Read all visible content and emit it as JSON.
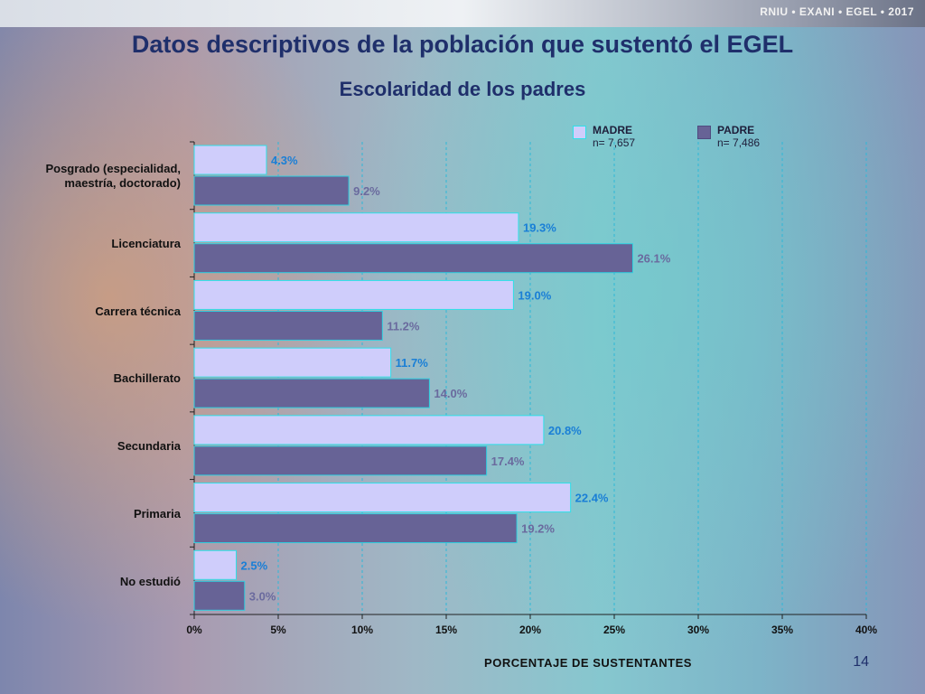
{
  "brand": "RNIU • EXANI • EGEL • 2017",
  "title": "Datos descriptivos de la población que sustentó el EGEL",
  "page_number": "14",
  "colors": {
    "madre_fill": "#cfcdfb",
    "madre_border": "#2fe0e8",
    "padre_fill": "#676396",
    "madre_text": "#1a7fd6",
    "padre_text": "#6a6a9e",
    "grid": "#2eb8d8"
  },
  "legend": [
    {
      "name": "MADRE",
      "n": "n= 7,657"
    },
    {
      "name": "PADRE",
      "n": "n= 7,486"
    }
  ],
  "chart_data": {
    "type": "bar",
    "orientation": "horizontal",
    "title": "Escolaridad de los padres",
    "xlabel": "PORCENTAJE DE SUSTENTANTES",
    "ylabel": "",
    "xlim": [
      0,
      40
    ],
    "x_ticks": [
      "0%",
      "5%",
      "10%",
      "15%",
      "20%",
      "25%",
      "30%",
      "35%",
      "40%"
    ],
    "grid": "vertical dashed",
    "legend_position": "top-right",
    "categories": [
      "Posgrado (especialidad, maestría, doctorado)",
      "Licenciatura",
      "Carrera técnica",
      "Bachillerato",
      "Secundaria",
      "Primaria",
      "No estudió"
    ],
    "series": [
      {
        "name": "MADRE",
        "values": [
          4.3,
          19.3,
          19.0,
          11.7,
          20.8,
          22.4,
          2.5
        ],
        "labels": [
          "4.3%",
          "19.3%",
          "19.0%",
          "11.7%",
          "20.8%",
          "22.4%",
          "2.5%"
        ]
      },
      {
        "name": "PADRE",
        "values": [
          9.2,
          26.1,
          11.2,
          14.0,
          17.4,
          19.2,
          3.0
        ],
        "labels": [
          "9.2%",
          "26.1%",
          "11.2%",
          "14.0%",
          "17.4%",
          "19.2%",
          "3.0%"
        ]
      }
    ]
  }
}
